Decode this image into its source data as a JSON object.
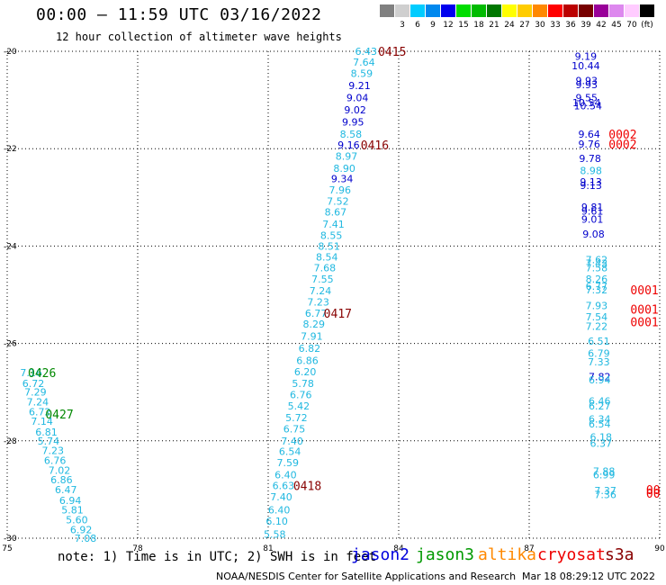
{
  "header": {
    "title": "00:00 – 11:59 UTC 03/16/2022",
    "subtitle": "12 hour collection of altimeter wave heights"
  },
  "color_scale": {
    "bins": [
      {
        "label": "",
        "color": "#808080"
      },
      {
        "label": "3",
        "color": "#cfcfcf"
      },
      {
        "label": "6",
        "color": "#00ccff"
      },
      {
        "label": "9",
        "color": "#0088ee"
      },
      {
        "label": "12",
        "color": "#0000ee"
      },
      {
        "label": "15",
        "color": "#00dd00"
      },
      {
        "label": "18",
        "color": "#00bb00"
      },
      {
        "label": "21",
        "color": "#007700"
      },
      {
        "label": "24",
        "color": "#ffff00"
      },
      {
        "label": "27",
        "color": "#ffcc00"
      },
      {
        "label": "30",
        "color": "#ff8800"
      },
      {
        "label": "33",
        "color": "#ff0000"
      },
      {
        "label": "36",
        "color": "#bb0000"
      },
      {
        "label": "39",
        "color": "#770000"
      },
      {
        "label": "42",
        "color": "#990099"
      },
      {
        "label": "45",
        "color": "#dd88ee"
      },
      {
        "label": "70",
        "color": "#ffccff"
      },
      {
        "label": "(ft)",
        "color": "#000000"
      }
    ]
  },
  "map": {
    "x_axis": {
      "min": 75,
      "max": 90,
      "ticks": [
        75,
        78,
        81,
        84,
        87,
        90
      ]
    },
    "y_axis": {
      "min": -30,
      "max": -20,
      "ticks": [
        -20,
        -22,
        -24,
        -26,
        -28,
        -30
      ]
    },
    "colors": {
      "low": "#20b8e0",
      "mid": "#0000cc",
      "pass": "#880000",
      "pass_jason3": "#008800",
      "pass_cryosat": "#ee0000"
    },
    "readings": [
      {
        "lon": 83.25,
        "lat": -20.0,
        "value": "6.43",
        "level": "low"
      },
      {
        "lon": 83.2,
        "lat": -20.22,
        "value": "7.64",
        "level": "low"
      },
      {
        "lon": 83.15,
        "lat": -20.45,
        "value": "8.59",
        "level": "low"
      },
      {
        "lon": 83.1,
        "lat": -20.7,
        "value": "9.21",
        "level": "mid"
      },
      {
        "lon": 83.05,
        "lat": -20.95,
        "value": "9.04",
        "level": "mid"
      },
      {
        "lon": 83.0,
        "lat": -21.2,
        "value": "9.02",
        "level": "mid"
      },
      {
        "lon": 82.95,
        "lat": -21.45,
        "value": "9.95",
        "level": "mid"
      },
      {
        "lon": 82.9,
        "lat": -21.7,
        "value": "8.58",
        "level": "low"
      },
      {
        "lon": 82.85,
        "lat": -21.92,
        "value": "9.16",
        "level": "mid"
      },
      {
        "lon": 82.8,
        "lat": -22.15,
        "value": "8.97",
        "level": "low"
      },
      {
        "lon": 82.75,
        "lat": -22.4,
        "value": "8.90",
        "level": "low"
      },
      {
        "lon": 82.7,
        "lat": -22.62,
        "value": "9.34",
        "level": "mid"
      },
      {
        "lon": 82.65,
        "lat": -22.85,
        "value": "7.96",
        "level": "low"
      },
      {
        "lon": 82.6,
        "lat": -23.08,
        "value": "7.52",
        "level": "low"
      },
      {
        "lon": 82.55,
        "lat": -23.3,
        "value": "8.67",
        "level": "low"
      },
      {
        "lon": 82.5,
        "lat": -23.55,
        "value": "7.41",
        "level": "low"
      },
      {
        "lon": 82.45,
        "lat": -23.78,
        "value": "8.55",
        "level": "low"
      },
      {
        "lon": 82.4,
        "lat": -24.0,
        "value": "8.51",
        "level": "low"
      },
      {
        "lon": 82.35,
        "lat": -24.22,
        "value": "8.54",
        "level": "low"
      },
      {
        "lon": 82.3,
        "lat": -24.45,
        "value": "7.68",
        "level": "low"
      },
      {
        "lon": 82.25,
        "lat": -24.68,
        "value": "7.55",
        "level": "low"
      },
      {
        "lon": 82.2,
        "lat": -24.92,
        "value": "7.24",
        "level": "low"
      },
      {
        "lon": 82.15,
        "lat": -25.15,
        "value": "7.23",
        "level": "low"
      },
      {
        "lon": 82.1,
        "lat": -25.38,
        "value": "6.77",
        "level": "low"
      },
      {
        "lon": 82.05,
        "lat": -25.6,
        "value": "8.29",
        "level": "low"
      },
      {
        "lon": 82.0,
        "lat": -25.85,
        "value": "7.91",
        "level": "low"
      },
      {
        "lon": 81.95,
        "lat": -26.1,
        "value": "6.82",
        "level": "low"
      },
      {
        "lon": 81.9,
        "lat": -26.35,
        "value": "6.86",
        "level": "low"
      },
      {
        "lon": 81.85,
        "lat": -26.58,
        "value": "6.20",
        "level": "low"
      },
      {
        "lon": 81.8,
        "lat": -26.82,
        "value": "5.78",
        "level": "low"
      },
      {
        "lon": 81.75,
        "lat": -27.05,
        "value": "6.76",
        "level": "low"
      },
      {
        "lon": 81.7,
        "lat": -27.28,
        "value": "5.42",
        "level": "low"
      },
      {
        "lon": 81.65,
        "lat": -27.52,
        "value": "5.72",
        "level": "low"
      },
      {
        "lon": 81.6,
        "lat": -27.75,
        "value": "6.75",
        "level": "low"
      },
      {
        "lon": 81.55,
        "lat": -28.0,
        "value": "7.40",
        "level": "low"
      },
      {
        "lon": 81.5,
        "lat": -28.22,
        "value": "6.54",
        "level": "low"
      },
      {
        "lon": 81.45,
        "lat": -28.45,
        "value": "7.59",
        "level": "low"
      },
      {
        "lon": 81.4,
        "lat": -28.7,
        "value": "6.40",
        "level": "low"
      },
      {
        "lon": 81.35,
        "lat": -28.92,
        "value": "6.63",
        "level": "low"
      },
      {
        "lon": 81.3,
        "lat": -29.15,
        "value": "7.40",
        "level": "low"
      },
      {
        "lon": 81.25,
        "lat": -29.42,
        "value": "6.40",
        "level": "low"
      },
      {
        "lon": 81.2,
        "lat": -29.65,
        "value": "6.10",
        "level": "low"
      },
      {
        "lon": 81.15,
        "lat": -29.92,
        "value": "5.58",
        "level": "low"
      },
      {
        "lon": 75.55,
        "lat": -26.6,
        "value": "7.16",
        "level": "low"
      },
      {
        "lon": 75.6,
        "lat": -26.82,
        "value": "6.72",
        "level": "low"
      },
      {
        "lon": 75.65,
        "lat": -27.0,
        "value": "7.29",
        "level": "low"
      },
      {
        "lon": 75.7,
        "lat": -27.2,
        "value": "7.24",
        "level": "low"
      },
      {
        "lon": 75.75,
        "lat": -27.4,
        "value": "6.72",
        "level": "low"
      },
      {
        "lon": 75.8,
        "lat": -27.6,
        "value": "7.14",
        "level": "low"
      },
      {
        "lon": 75.9,
        "lat": -27.82,
        "value": "6.81",
        "level": "low"
      },
      {
        "lon": 75.95,
        "lat": -28.0,
        "value": "5.74",
        "level": "low"
      },
      {
        "lon": 76.05,
        "lat": -28.2,
        "value": "7.23",
        "level": "low"
      },
      {
        "lon": 76.1,
        "lat": -28.4,
        "value": "6.76",
        "level": "low"
      },
      {
        "lon": 76.2,
        "lat": -28.6,
        "value": "7.02",
        "level": "low"
      },
      {
        "lon": 76.25,
        "lat": -28.8,
        "value": "6.86",
        "level": "low"
      },
      {
        "lon": 76.35,
        "lat": -29.0,
        "value": "6.47",
        "level": "low"
      },
      {
        "lon": 76.45,
        "lat": -29.22,
        "value": "6.94",
        "level": "low"
      },
      {
        "lon": 76.5,
        "lat": -29.42,
        "value": "5.81",
        "level": "low"
      },
      {
        "lon": 76.6,
        "lat": -29.62,
        "value": "5.60",
        "level": "low"
      },
      {
        "lon": 76.7,
        "lat": -29.82,
        "value": "6.92",
        "level": "low"
      },
      {
        "lon": 76.8,
        "lat": -30.0,
        "value": "7.08",
        "level": "low"
      },
      {
        "lon": 88.3,
        "lat": -20.1,
        "value": "9.19",
        "level": "mid"
      },
      {
        "lon": 88.3,
        "lat": -20.3,
        "value": "10.44",
        "level": "mid"
      },
      {
        "lon": 88.32,
        "lat": -20.6,
        "value": "9.93",
        "level": "mid"
      },
      {
        "lon": 88.32,
        "lat": -20.68,
        "value": "9.93",
        "level": "mid"
      },
      {
        "lon": 88.32,
        "lat": -20.95,
        "value": "9.55",
        "level": "mid"
      },
      {
        "lon": 88.32,
        "lat": -21.05,
        "value": "10.54",
        "level": "mid"
      },
      {
        "lon": 88.35,
        "lat": -21.12,
        "value": "10.54",
        "level": "mid"
      },
      {
        "lon": 88.38,
        "lat": -21.7,
        "value": "9.64",
        "level": "mid"
      },
      {
        "lon": 88.38,
        "lat": -21.9,
        "value": "9.76",
        "level": "mid"
      },
      {
        "lon": 88.4,
        "lat": -22.2,
        "value": "9.78",
        "level": "mid"
      },
      {
        "lon": 88.42,
        "lat": -22.45,
        "value": "8.98",
        "level": "low"
      },
      {
        "lon": 88.42,
        "lat": -22.68,
        "value": "9.13",
        "level": "mid"
      },
      {
        "lon": 88.42,
        "lat": -22.75,
        "value": "9.13",
        "level": "mid"
      },
      {
        "lon": 88.45,
        "lat": -23.2,
        "value": "9.81",
        "level": "mid"
      },
      {
        "lon": 88.45,
        "lat": -23.28,
        "value": "9.61",
        "level": "mid"
      },
      {
        "lon": 88.45,
        "lat": -23.45,
        "value": "9.01",
        "level": "mid"
      },
      {
        "lon": 88.48,
        "lat": -23.75,
        "value": "9.08",
        "level": "mid"
      },
      {
        "lon": 88.55,
        "lat": -24.28,
        "value": "7.62",
        "level": "low"
      },
      {
        "lon": 88.55,
        "lat": -24.35,
        "value": "7.43",
        "level": "low"
      },
      {
        "lon": 88.55,
        "lat": -24.45,
        "value": "7.58",
        "level": "low"
      },
      {
        "lon": 88.55,
        "lat": -24.68,
        "value": "8.26",
        "level": "low"
      },
      {
        "lon": 88.55,
        "lat": -24.82,
        "value": "6.77",
        "level": "low"
      },
      {
        "lon": 88.55,
        "lat": -24.9,
        "value": "7.32",
        "level": "low"
      },
      {
        "lon": 88.55,
        "lat": -25.22,
        "value": "7.93",
        "level": "low"
      },
      {
        "lon": 88.55,
        "lat": -25.45,
        "value": "7.54",
        "level": "low"
      },
      {
        "lon": 88.55,
        "lat": -25.65,
        "value": "7.22",
        "level": "low"
      },
      {
        "lon": 88.6,
        "lat": -25.95,
        "value": "6.51",
        "level": "low"
      },
      {
        "lon": 88.6,
        "lat": -26.2,
        "value": "6.79",
        "level": "low"
      },
      {
        "lon": 88.6,
        "lat": -26.38,
        "value": "7.33",
        "level": "low"
      },
      {
        "lon": 88.62,
        "lat": -26.68,
        "value": "7.82",
        "level": "mid"
      },
      {
        "lon": 88.62,
        "lat": -26.75,
        "value": "6.94",
        "level": "low"
      },
      {
        "lon": 88.62,
        "lat": -27.18,
        "value": "6.46",
        "level": "low"
      },
      {
        "lon": 88.62,
        "lat": -27.28,
        "value": "6.27",
        "level": "low"
      },
      {
        "lon": 88.62,
        "lat": -27.55,
        "value": "6.34",
        "level": "low"
      },
      {
        "lon": 88.62,
        "lat": -27.65,
        "value": "6.54",
        "level": "low"
      },
      {
        "lon": 88.65,
        "lat": -27.92,
        "value": "6.18",
        "level": "low"
      },
      {
        "lon": 88.65,
        "lat": -28.05,
        "value": "6.37",
        "level": "low"
      },
      {
        "lon": 88.72,
        "lat": -28.62,
        "value": "7.88",
        "level": "low"
      },
      {
        "lon": 88.72,
        "lat": -28.7,
        "value": "6.99",
        "level": "low"
      },
      {
        "lon": 88.75,
        "lat": -29.02,
        "value": "7.37",
        "level": "low"
      },
      {
        "lon": 88.75,
        "lat": -29.1,
        "value": "7.36",
        "level": "low"
      }
    ],
    "pass_labels": [
      {
        "lon": 83.85,
        "lat": -20.0,
        "text": "0415",
        "group": "pass"
      },
      {
        "lon": 83.45,
        "lat": -21.92,
        "text": "0416",
        "group": "pass"
      },
      {
        "lon": 82.6,
        "lat": -25.38,
        "text": "0417",
        "group": "pass"
      },
      {
        "lon": 81.9,
        "lat": -28.92,
        "text": "0418",
        "group": "pass"
      },
      {
        "lon": 75.8,
        "lat": -26.6,
        "text": "0426",
        "group": "pass_jason3"
      },
      {
        "lon": 76.2,
        "lat": -27.45,
        "text": "0427",
        "group": "pass_jason3"
      },
      {
        "lon": 89.15,
        "lat": -21.7,
        "text": "0002",
        "group": "pass_cryosat"
      },
      {
        "lon": 89.15,
        "lat": -21.9,
        "text": "0002",
        "group": "pass_cryosat"
      },
      {
        "lon": 89.65,
        "lat": -24.9,
        "text": "0001",
        "group": "pass_cryosat"
      },
      {
        "lon": 89.65,
        "lat": -25.3,
        "text": "0001",
        "group": "pass_cryosat"
      },
      {
        "lon": 89.65,
        "lat": -25.55,
        "text": "0001",
        "group": "pass_cryosat"
      },
      {
        "lon": 89.85,
        "lat": -29.0,
        "text": "00",
        "group": "pass_cryosat"
      },
      {
        "lon": 89.85,
        "lat": -29.08,
        "text": "00",
        "group": "pass_cryosat"
      }
    ]
  },
  "footer": {
    "note": "note: 1) Time is in UTC; 2) SWH is in feet",
    "legend": [
      {
        "name": "jason2",
        "color": "#0000dd"
      },
      {
        "name": "jason3",
        "color": "#009900"
      },
      {
        "name": "altika",
        "color": "#ff8800"
      },
      {
        "name": "cryosat",
        "color": "#ee0000"
      },
      {
        "name": "s3a",
        "color": "#880000"
      }
    ],
    "credit": "NOAA/NESDIS Center for Satellite Applications and Research",
    "stamp": "Mar 18 08:29:12 UTC 2022"
  }
}
